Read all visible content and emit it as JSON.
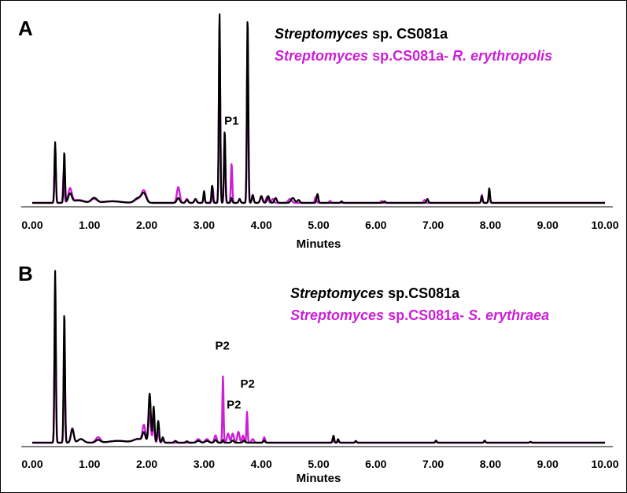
{
  "chart_data": [
    {
      "panel": "A",
      "type": "line",
      "xlabel": "Minutes",
      "xlim": [
        0,
        10
      ],
      "ylim": [
        0,
        1
      ],
      "x_tick_labels": [
        "0.00",
        "1.00",
        "2.00",
        "3.00",
        "4.00",
        "5.00",
        "6.00",
        "7.00",
        "8.00",
        "9.00",
        "10.00"
      ],
      "grid": false,
      "legend_placement": "top-right",
      "legend": [
        {
          "italic": "Streptomyces",
          "rest": " sp. CS081a",
          "italic2": "",
          "color": "#000000"
        },
        {
          "italic": "Streptomyces",
          "rest": " sp.CS081a- ",
          "italic2": "R. erythropolis",
          "color": "#cc1fd6"
        }
      ],
      "annotations": [
        {
          "text": "P1",
          "x": 3.48,
          "y": 0.36
        }
      ],
      "series": [
        {
          "color": "#cc1fd6",
          "peaks": [
            [
              0.4,
              0.28,
              0.012
            ],
            [
              0.55,
              0.16,
              0.012
            ],
            [
              0.66,
              0.07,
              0.03
            ],
            [
              0.8,
              0.015,
              0.1
            ],
            [
              1.08,
              0.02,
              0.05
            ],
            [
              1.4,
              0.008,
              0.15
            ],
            [
              1.85,
              0.02,
              0.06
            ],
            [
              1.95,
              0.06,
              0.04
            ],
            [
              2.55,
              0.08,
              0.025
            ],
            [
              2.7,
              0.02,
              0.02
            ],
            [
              2.85,
              0.015,
              0.02
            ],
            [
              3.0,
              0.04,
              0.012
            ],
            [
              3.15,
              0.08,
              0.012
            ],
            [
              3.27,
              0.88,
              0.012
            ],
            [
              3.36,
              0.33,
              0.012
            ],
            [
              3.48,
              0.2,
              0.012
            ],
            [
              3.62,
              0.02,
              0.015
            ],
            [
              3.76,
              0.86,
              0.012
            ],
            [
              3.85,
              0.04,
              0.015
            ],
            [
              4.0,
              0.03,
              0.02
            ],
            [
              4.1,
              0.03,
              0.02
            ],
            [
              4.2,
              0.02,
              0.02
            ],
            [
              4.5,
              0.02,
              0.03
            ],
            [
              4.95,
              0.03,
              0.015
            ],
            [
              5.2,
              0.01,
              0.015
            ],
            [
              6.1,
              0.01,
              0.015
            ],
            [
              6.85,
              0.015,
              0.015
            ],
            [
              7.85,
              0.04,
              0.012
            ],
            [
              7.98,
              0.05,
              0.012
            ]
          ]
        },
        {
          "color": "#000000",
          "peaks": [
            [
              0.4,
              0.31,
              0.012
            ],
            [
              0.56,
              0.26,
              0.012
            ],
            [
              0.66,
              0.045,
              0.03
            ],
            [
              0.8,
              0.012,
              0.1
            ],
            [
              1.08,
              0.025,
              0.05
            ],
            [
              1.4,
              0.008,
              0.15
            ],
            [
              1.85,
              0.025,
              0.06
            ],
            [
              1.95,
              0.045,
              0.04
            ],
            [
              2.55,
              0.025,
              0.025
            ],
            [
              2.7,
              0.015,
              0.02
            ],
            [
              2.85,
              0.02,
              0.02
            ],
            [
              3.0,
              0.06,
              0.012
            ],
            [
              3.14,
              0.09,
              0.012
            ],
            [
              3.27,
              0.97,
              0.012
            ],
            [
              3.36,
              0.37,
              0.012
            ],
            [
              3.48,
              0.025,
              0.012
            ],
            [
              3.62,
              0.02,
              0.015
            ],
            [
              3.76,
              0.95,
              0.012
            ],
            [
              3.85,
              0.04,
              0.015
            ],
            [
              4.0,
              0.035,
              0.02
            ],
            [
              4.12,
              0.035,
              0.02
            ],
            [
              4.25,
              0.025,
              0.02
            ],
            [
              4.55,
              0.025,
              0.03
            ],
            [
              4.65,
              0.015,
              0.02
            ],
            [
              4.98,
              0.045,
              0.015
            ],
            [
              5.4,
              0.008,
              0.015
            ],
            [
              6.15,
              0.008,
              0.015
            ],
            [
              6.9,
              0.02,
              0.015
            ],
            [
              7.85,
              0.035,
              0.012
            ],
            [
              7.98,
              0.075,
              0.012
            ]
          ]
        }
      ]
    },
    {
      "panel": "B",
      "type": "line",
      "xlabel": "Minutes",
      "xlim": [
        0,
        10
      ],
      "ylim": [
        0,
        1
      ],
      "x_tick_labels": [
        "0.00",
        "1.00",
        "2.00",
        "3.00",
        "4.00",
        "5.00",
        "6.00",
        "7.00",
        "8.00",
        "9.00",
        "10.00"
      ],
      "grid": false,
      "legend_placement": "top-right",
      "legend": [
        {
          "italic": "Streptomyces",
          "rest": " sp.CS081a",
          "italic2": "",
          "color": "#000000"
        },
        {
          "italic": "Streptomyces",
          "rest": " sp.CS081a- ",
          "italic2": "S. erythraea",
          "color": "#cc1fd6"
        }
      ],
      "annotations": [
        {
          "text": "P2",
          "x": 3.32,
          "y": 0.48
        },
        {
          "text": "P2",
          "x": 3.52,
          "y": 0.155
        },
        {
          "text": "P2",
          "x": 3.76,
          "y": 0.27
        }
      ],
      "series": [
        {
          "color": "#cc1fd6",
          "peaks": [
            [
              0.4,
              0.75,
              0.012
            ],
            [
              0.56,
              0.55,
              0.012
            ],
            [
              0.7,
              0.08,
              0.025
            ],
            [
              0.85,
              0.02,
              0.05
            ],
            [
              1.15,
              0.03,
              0.04
            ],
            [
              1.5,
              0.01,
              0.15
            ],
            [
              1.85,
              0.02,
              0.08
            ],
            [
              1.95,
              0.09,
              0.025
            ],
            [
              2.05,
              0.17,
              0.02
            ],
            [
              2.12,
              0.12,
              0.015
            ],
            [
              2.2,
              0.06,
              0.015
            ],
            [
              2.28,
              0.02,
              0.015
            ],
            [
              2.9,
              0.02,
              0.03
            ],
            [
              3.05,
              0.02,
              0.03
            ],
            [
              3.2,
              0.04,
              0.02
            ],
            [
              3.33,
              0.37,
              0.01
            ],
            [
              3.42,
              0.05,
              0.02
            ],
            [
              3.5,
              0.05,
              0.02
            ],
            [
              3.6,
              0.06,
              0.02
            ],
            [
              3.68,
              0.04,
              0.015
            ],
            [
              3.75,
              0.17,
              0.01
            ],
            [
              3.85,
              0.02,
              0.02
            ],
            [
              4.05,
              0.03,
              0.015
            ],
            [
              5.25,
              0.025,
              0.012
            ],
            [
              5.35,
              0.01,
              0.012
            ],
            [
              5.65,
              0.008,
              0.012
            ],
            [
              7.05,
              0.008,
              0.012
            ],
            [
              7.9,
              0.01,
              0.012
            ],
            [
              8.7,
              0.005,
              0.012
            ]
          ]
        },
        {
          "color": "#000000",
          "peaks": [
            [
              0.4,
              0.95,
              0.012
            ],
            [
              0.56,
              0.72,
              0.012
            ],
            [
              0.7,
              0.075,
              0.025
            ],
            [
              0.85,
              0.02,
              0.05
            ],
            [
              1.15,
              0.015,
              0.04
            ],
            [
              1.5,
              0.01,
              0.15
            ],
            [
              1.85,
              0.02,
              0.08
            ],
            [
              1.95,
              0.05,
              0.025
            ],
            [
              2.05,
              0.27,
              0.02
            ],
            [
              2.12,
              0.2,
              0.015
            ],
            [
              2.2,
              0.12,
              0.015
            ],
            [
              2.28,
              0.03,
              0.015
            ],
            [
              2.5,
              0.01,
              0.02
            ],
            [
              2.7,
              0.008,
              0.02
            ],
            [
              2.9,
              0.01,
              0.03
            ],
            [
              3.05,
              0.01,
              0.03
            ],
            [
              3.2,
              0.015,
              0.02
            ],
            [
              3.33,
              0.015,
              0.01
            ],
            [
              3.5,
              0.012,
              0.02
            ],
            [
              3.7,
              0.012,
              0.02
            ],
            [
              4.05,
              0.012,
              0.015
            ],
            [
              5.26,
              0.04,
              0.012
            ],
            [
              5.34,
              0.02,
              0.012
            ],
            [
              5.65,
              0.01,
              0.012
            ],
            [
              7.05,
              0.012,
              0.012
            ],
            [
              7.9,
              0.012,
              0.012
            ],
            [
              8.7,
              0.005,
              0.012
            ]
          ]
        }
      ]
    }
  ]
}
